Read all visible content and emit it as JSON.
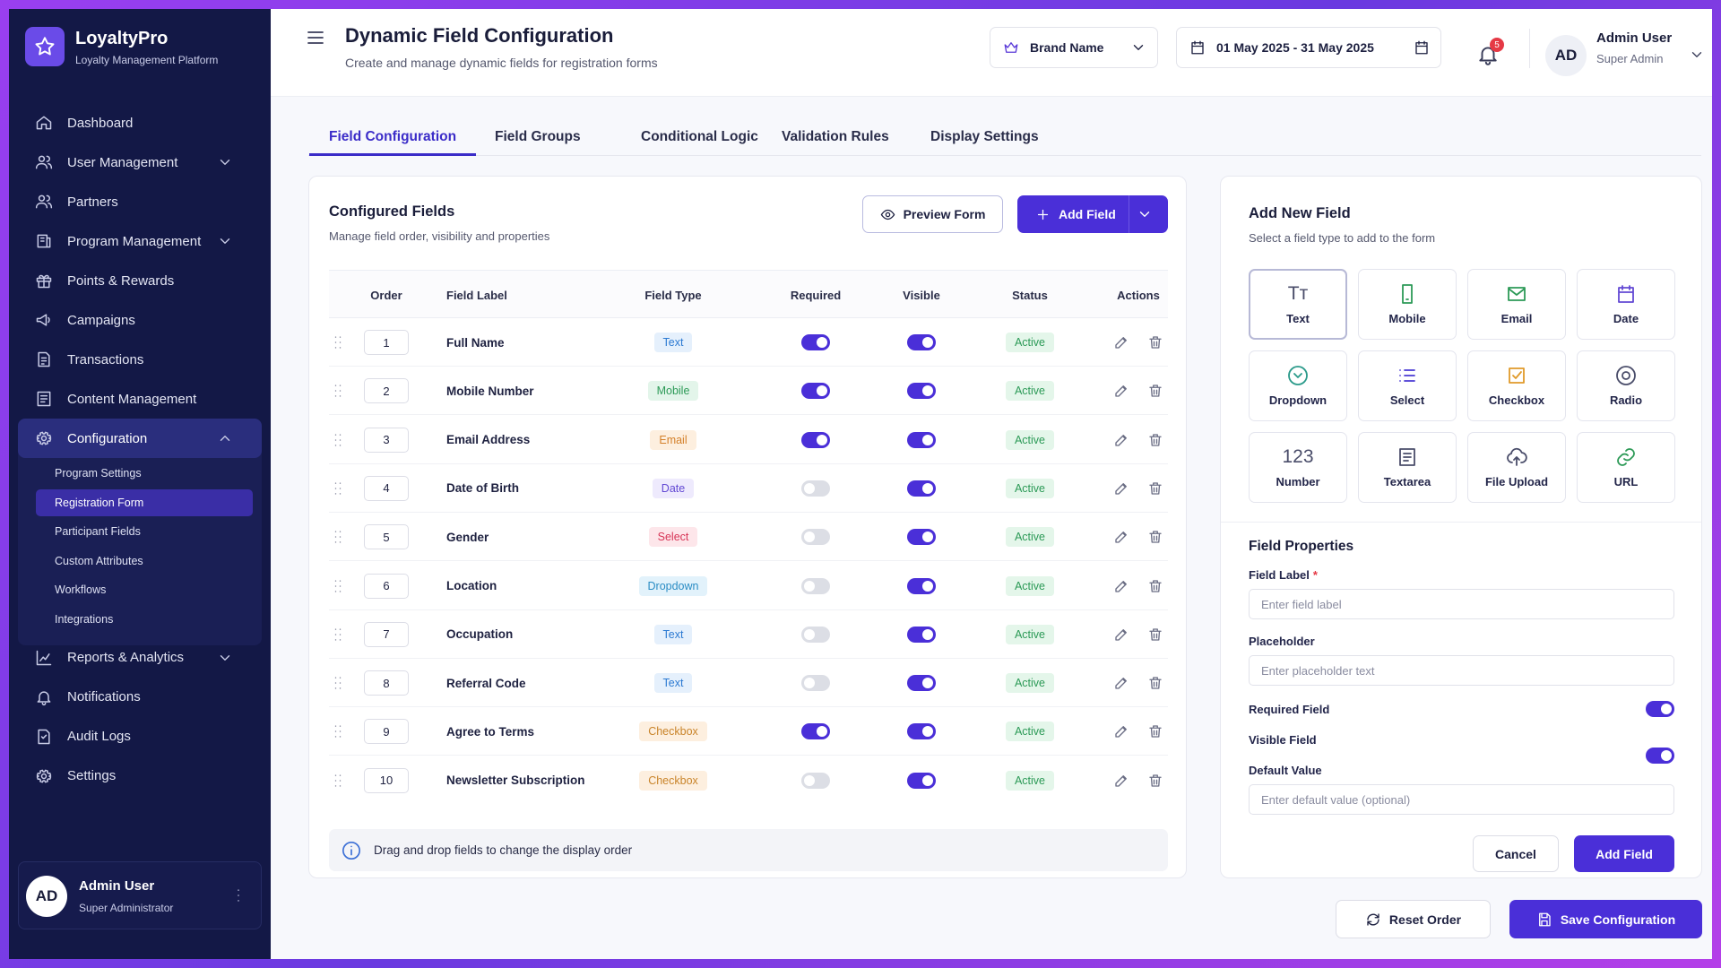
{
  "brand": {
    "name": "LoyaltyPro",
    "tagline": "Loyalty Management Platform"
  },
  "nav": [
    {
      "label": "Dashboard"
    },
    {
      "label": "User Management",
      "has_children": true
    },
    {
      "label": "Partners"
    },
    {
      "label": "Program Management",
      "has_children": true
    },
    {
      "label": "Points & Rewards"
    },
    {
      "label": "Campaigns"
    },
    {
      "label": "Transactions"
    },
    {
      "label": "Content Management"
    },
    {
      "label": "Configuration",
      "has_children": true,
      "expanded": true,
      "active": true,
      "children": [
        {
          "label": "Program Settings"
        },
        {
          "label": "Registration Form",
          "active": true
        },
        {
          "label": "Participant Fields"
        },
        {
          "label": "Custom Attributes"
        },
        {
          "label": "Workflows"
        },
        {
          "label": "Integrations"
        }
      ]
    },
    {
      "label": "Reports & Analytics",
      "has_children": true
    },
    {
      "label": "Notifications"
    },
    {
      "label": "Audit Logs"
    },
    {
      "label": "Settings"
    }
  ],
  "sidebar_user": {
    "initials": "AD",
    "name": "Admin User",
    "role": "Super Administrator"
  },
  "header": {
    "title": "Dynamic Field Configuration",
    "subtitle": "Create and manage dynamic fields for registration forms",
    "brand_select": "Brand Name",
    "date_range": "01 May 2025 - 31 May 2025",
    "notifications": 5,
    "user": {
      "initials": "AD",
      "name": "Admin User",
      "role": "Super Admin"
    }
  },
  "tabs": [
    {
      "label": "Field Configuration",
      "active": true
    },
    {
      "label": "Field Groups"
    },
    {
      "label": "Conditional Logic"
    },
    {
      "label": "Validation Rules"
    },
    {
      "label": "Display Settings"
    }
  ],
  "configured": {
    "title": "Configured Fields",
    "subtitle": "Manage field order, visibility and properties",
    "preview_button": "Preview Form",
    "add_button": "Add Field",
    "columns": [
      "Order",
      "Field Label",
      "Field Type",
      "Required",
      "Visible",
      "Status",
      "Actions"
    ],
    "rows": [
      {
        "order": 1,
        "label": "Full Name",
        "type": "Text",
        "required": true,
        "visible": true,
        "status": "Active"
      },
      {
        "order": 2,
        "label": "Mobile Number",
        "type": "Mobile",
        "required": true,
        "visible": true,
        "status": "Active"
      },
      {
        "order": 3,
        "label": "Email Address",
        "type": "Email",
        "required": true,
        "visible": true,
        "status": "Active"
      },
      {
        "order": 4,
        "label": "Date of Birth",
        "type": "Date",
        "required": false,
        "visible": true,
        "status": "Active"
      },
      {
        "order": 5,
        "label": "Gender",
        "type": "Select",
        "required": false,
        "visible": true,
        "status": "Active"
      },
      {
        "order": 6,
        "label": "Location",
        "type": "Dropdown",
        "required": false,
        "visible": true,
        "status": "Active"
      },
      {
        "order": 7,
        "label": "Occupation",
        "type": "Text",
        "required": false,
        "visible": true,
        "status": "Active"
      },
      {
        "order": 8,
        "label": "Referral Code",
        "type": "Text",
        "required": false,
        "visible": true,
        "status": "Active"
      },
      {
        "order": 9,
        "label": "Agree to Terms",
        "type": "Checkbox",
        "required": true,
        "visible": true,
        "status": "Active"
      },
      {
        "order": 10,
        "label": "Newsletter Subscription",
        "type": "Checkbox",
        "required": false,
        "visible": true,
        "status": "Active"
      }
    ],
    "info": "Drag and drop fields to change the display order"
  },
  "add_new": {
    "title": "Add New Field",
    "subtitle": "Select a field type to add to the form",
    "types": [
      {
        "label": "Text",
        "glyph": "Tт",
        "selected": true
      },
      {
        "label": "Mobile"
      },
      {
        "label": "Email"
      },
      {
        "label": "Date"
      },
      {
        "label": "Dropdown"
      },
      {
        "label": "Select"
      },
      {
        "label": "Checkbox"
      },
      {
        "label": "Radio"
      },
      {
        "label": "Number",
        "glyph": "123"
      },
      {
        "label": "Textarea"
      },
      {
        "label": "File Upload"
      },
      {
        "label": "URL"
      }
    ]
  },
  "properties": {
    "title": "Field Properties",
    "field_label": "Field Label",
    "required_mark": "*",
    "field_label_placeholder": "Enter field label",
    "placeholder": "Placeholder",
    "placeholder_placeholder": "Enter placeholder text",
    "required_field": "Required Field",
    "required_on": true,
    "visible_field": "Visible Field",
    "visible_on": true,
    "default_value": "Default Value",
    "default_value_placeholder": "Enter default value (optional)",
    "cancel": "Cancel",
    "submit": "Add Field"
  },
  "footer": {
    "reset": "Reset Order",
    "save": "Save Configuration"
  }
}
